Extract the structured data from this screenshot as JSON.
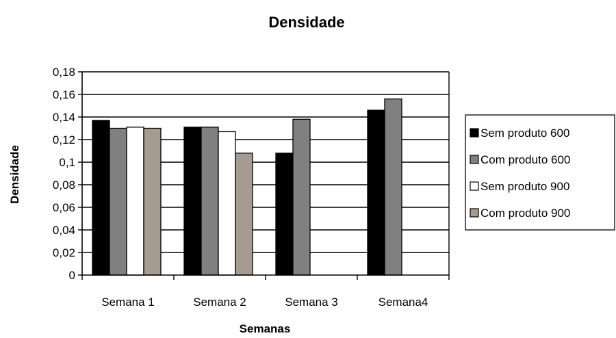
{
  "chart_data": {
    "type": "bar",
    "title": "Densidade",
    "xlabel": "Semanas",
    "ylabel": "Densidade",
    "categories": [
      "Semana 1",
      "Semana 2",
      "Semana 3",
      "Semana4"
    ],
    "ylim": [
      0,
      0.18
    ],
    "yticks": [
      "0",
      "0,02",
      "0,04",
      "0,06",
      "0,08",
      "0,1",
      "0,12",
      "0,14",
      "0,16",
      "0,18"
    ],
    "grid": true,
    "legend_position": "right",
    "series": [
      {
        "name": "Sem produto 600",
        "color": "#000000",
        "values": [
          0.137,
          0.131,
          0.108,
          0.146
        ]
      },
      {
        "name": "Com produto 600",
        "color": "#808080",
        "values": [
          0.13,
          0.131,
          0.138,
          0.156
        ]
      },
      {
        "name": "Sem produto 900",
        "color": "#ffffff",
        "values": [
          0.131,
          0.127,
          null,
          null
        ]
      },
      {
        "name": "Com produto 900",
        "color": "#a69b91",
        "values": [
          0.13,
          0.108,
          null,
          null
        ]
      }
    ]
  }
}
